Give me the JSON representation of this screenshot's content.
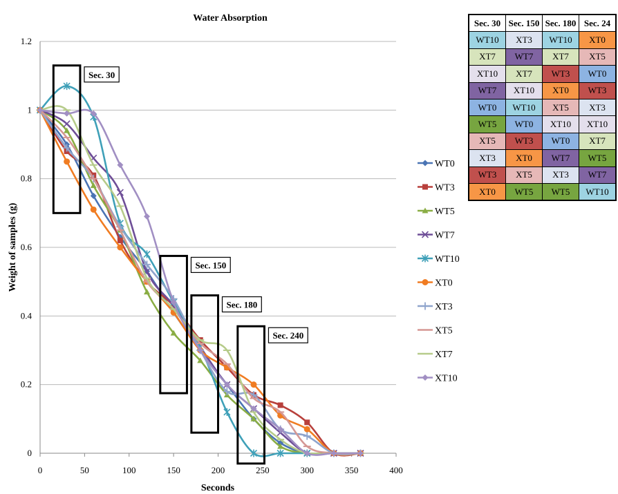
{
  "chart_data": {
    "type": "line",
    "title": "Water Absorption",
    "xlabel": "Seconds",
    "ylabel": "Weight of samples (g)",
    "xlim": [
      0,
      400
    ],
    "ylim": [
      0,
      1.2
    ],
    "x_ticks": [
      0,
      50,
      100,
      150,
      200,
      250,
      300,
      350,
      400
    ],
    "y_ticks": [
      0,
      0.2,
      0.4,
      0.6,
      0.8,
      1,
      1.2
    ],
    "grid": "horizontal",
    "legend": "right",
    "series": [
      {
        "name": "WT0",
        "color": "#4a74b4",
        "marker": "diamond",
        "x": [
          0,
          30,
          60,
          90,
          120,
          150,
          180,
          210,
          240,
          270,
          300,
          330,
          360
        ],
        "y": [
          1,
          0.9,
          0.75,
          0.63,
          0.53,
          0.41,
          0.3,
          0.2,
          0.1,
          0.03,
          0,
          0,
          0
        ]
      },
      {
        "name": "WT3",
        "color": "#b8403c",
        "marker": "square",
        "x": [
          0,
          30,
          60,
          90,
          120,
          150,
          180,
          210,
          240,
          270,
          300,
          330,
          360
        ],
        "y": [
          1,
          0.88,
          0.81,
          0.62,
          0.5,
          0.43,
          0.33,
          0.25,
          0.17,
          0.14,
          0.09,
          0,
          0
        ]
      },
      {
        "name": "WT5",
        "color": "#8aad44",
        "marker": "triangle",
        "x": [
          0,
          30,
          60,
          90,
          120,
          150,
          180,
          210,
          240,
          270,
          300,
          330,
          360
        ],
        "y": [
          1,
          0.94,
          0.78,
          0.65,
          0.47,
          0.35,
          0.27,
          0.17,
          0.1,
          0.02,
          0,
          0,
          0
        ]
      },
      {
        "name": "WT7",
        "color": "#6e4e97",
        "marker": "x",
        "x": [
          0,
          30,
          60,
          90,
          120,
          150,
          180,
          210,
          240,
          270,
          300,
          330,
          360
        ],
        "y": [
          1,
          0.96,
          0.86,
          0.76,
          0.53,
          0.43,
          0.31,
          0.2,
          0.13,
          0.06,
          0,
          0,
          0
        ]
      },
      {
        "name": "WT10",
        "color": "#3fa0b8",
        "marker": "star",
        "x": [
          0,
          30,
          60,
          90,
          120,
          150,
          180,
          210,
          240,
          270,
          300
        ],
        "y": [
          1,
          1.07,
          0.98,
          0.67,
          0.58,
          0.44,
          0.31,
          0.12,
          0,
          0,
          0
        ]
      },
      {
        "name": "XT0",
        "color": "#f07c22",
        "marker": "circle",
        "x": [
          0,
          30,
          60,
          90,
          120,
          150,
          180,
          210,
          240,
          270,
          300,
          330,
          360
        ],
        "y": [
          1,
          0.85,
          0.71,
          0.6,
          0.5,
          0.41,
          0.3,
          0.25,
          0.2,
          0.11,
          0.07,
          0,
          0
        ]
      },
      {
        "name": "XT3",
        "color": "#8fa4cc",
        "marker": "plus",
        "x": [
          0,
          30,
          60,
          90,
          120,
          150,
          180,
          210,
          240,
          270,
          300,
          330,
          360
        ],
        "y": [
          1,
          0.89,
          0.8,
          0.66,
          0.55,
          0.45,
          0.3,
          0.18,
          0.17,
          0.07,
          0.05,
          0,
          0
        ]
      },
      {
        "name": "XT5",
        "color": "#d59793",
        "marker": "dash",
        "x": [
          0,
          30,
          60,
          90,
          120,
          150,
          180,
          210,
          240,
          270,
          300,
          330,
          360
        ],
        "y": [
          1,
          0.92,
          0.8,
          0.65,
          0.5,
          0.42,
          0.32,
          0.26,
          0.16,
          0.12,
          0.02,
          0,
          0
        ]
      },
      {
        "name": "XT7",
        "color": "#b6cb8a",
        "marker": "dash",
        "x": [
          0,
          30,
          60,
          90,
          120,
          150,
          180,
          210,
          240,
          270,
          300,
          330,
          360
        ],
        "y": [
          1,
          1.0,
          0.84,
          0.72,
          0.51,
          0.42,
          0.33,
          0.3,
          0.12,
          0.04,
          0,
          0,
          0
        ]
      },
      {
        "name": "XT10",
        "color": "#a18fc3",
        "marker": "diamond",
        "x": [
          0,
          30,
          60,
          90,
          120,
          150,
          180,
          210,
          240,
          270,
          300,
          330,
          360
        ],
        "y": [
          1,
          0.99,
          0.99,
          0.84,
          0.69,
          0.44,
          0.3,
          0.2,
          0.13,
          0.07,
          0,
          0,
          0
        ]
      }
    ],
    "annotations": [
      {
        "label": "Sec. 30",
        "box": {
          "x0": 15,
          "x1": 45,
          "y0": 0.7,
          "y1": 1.13
        }
      },
      {
        "label": "Sec. 150",
        "box": {
          "x0": 135,
          "x1": 165,
          "y0": 0.175,
          "y1": 0.575
        }
      },
      {
        "label": "Sec. 180",
        "box": {
          "x0": 170,
          "x1": 200,
          "y0": 0.06,
          "y1": 0.46
        }
      },
      {
        "label": "Sec. 240",
        "box": {
          "x0": 222,
          "x1": 252,
          "y0": -0.03,
          "y1": 0.37
        }
      }
    ]
  },
  "ranking_table": {
    "headers": [
      "Sec. 30",
      "Sec. 150",
      "Sec. 180",
      "Sec. 24"
    ],
    "rows": [
      [
        "WT10",
        "XT3",
        "WT10",
        "XT0"
      ],
      [
        "XT7",
        "WT7",
        "XT7",
        "XT5"
      ],
      [
        "XT10",
        "XT7",
        "WT3",
        "WT0"
      ],
      [
        "WT7",
        "XT10",
        "XT0",
        "WT3"
      ],
      [
        "WT0",
        "WT10",
        "XT5",
        "XT3"
      ],
      [
        "WT5",
        "WT0",
        "XT10",
        "XT10"
      ],
      [
        "XT5",
        "WT3",
        "WT0",
        "XT7"
      ],
      [
        "XT3",
        "XT0",
        "WT7",
        "WT5"
      ],
      [
        "WT3",
        "XT5",
        "XT3",
        "WT7"
      ],
      [
        "XT0",
        "WT5",
        "WT5",
        "WT10"
      ]
    ],
    "cell_colors": {
      "WT0": "#8db3e2",
      "WT3": "#c0504d",
      "WT5": "#77a540",
      "WT7": "#8064a2",
      "WT10": "#9dd3e2",
      "XT0": "#f79646",
      "XT3": "#dce3f0",
      "XT5": "#e6b8b7",
      "XT7": "#d7e4bc",
      "XT10": "#e4dfec"
    }
  }
}
